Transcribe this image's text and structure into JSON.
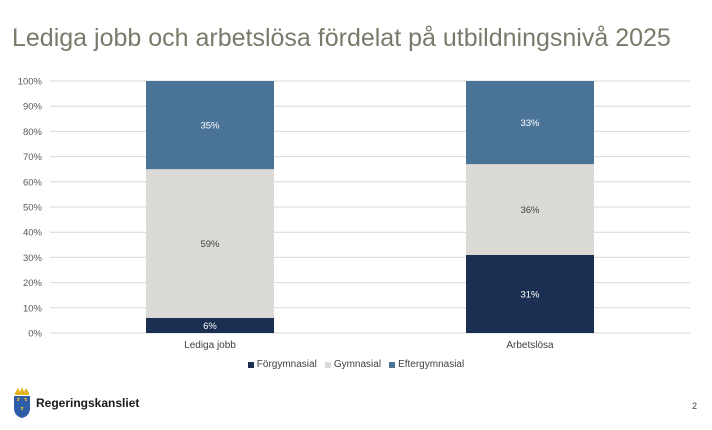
{
  "title": "Lediga jobb och arbetslösa fördelat på utbildningsnivå 2025",
  "logo_text": "Regeringskansliet",
  "page_number": "2",
  "chart_data": {
    "type": "bar",
    "stacked": true,
    "categories": [
      "Lediga jobb",
      "Arbetslösa"
    ],
    "series": [
      {
        "name": "Förgymnasial",
        "values": [
          6,
          31
        ],
        "labels": [
          "6%",
          "31%"
        ],
        "color": "#1b2f52"
      },
      {
        "name": "Gymnasial",
        "values": [
          59,
          36
        ],
        "labels": [
          "59%",
          "36%"
        ],
        "color": "#dcdad6"
      },
      {
        "name": "Eftergymnasial",
        "values": [
          35,
          33
        ],
        "labels": [
          "35%",
          "33%"
        ],
        "color": "#4a7398"
      }
    ],
    "ylim": [
      0,
      100
    ],
    "yticks": [
      "0%",
      "10%",
      "20%",
      "30%",
      "40%",
      "50%",
      "60%",
      "70%",
      "80%",
      "90%",
      "100%"
    ],
    "grid": true,
    "legend_position": "bottom"
  }
}
